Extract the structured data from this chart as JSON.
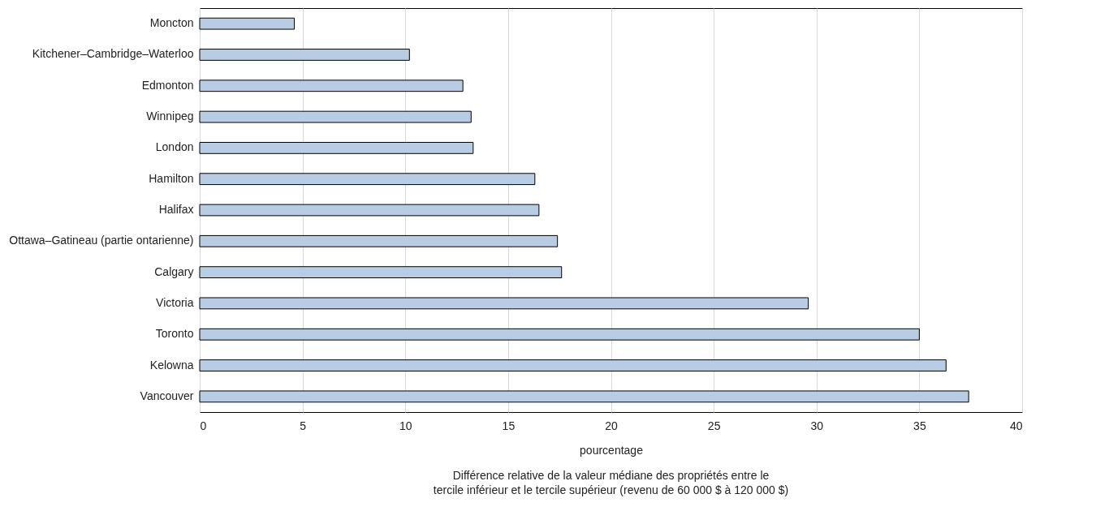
{
  "chart_data": {
    "type": "bar",
    "orientation": "horizontal",
    "xlabel": "pourcentage",
    "annotations": [
      "Différence relative de la valeur médiane des propriétés entre le tercile inférieur et le tercile supérieur (revenu de 60 000 $ à 120 000 $)"
    ],
    "categories": [
      "Moncton",
      "Kitchener–Cambridge–Waterloo",
      "Edmonton",
      "Winnipeg",
      "London",
      "Hamilton",
      "Halifax",
      "Ottawa–Gatineau (partie ontarienne)",
      "Calgary",
      "Victoria",
      "Toronto",
      "Kelowna",
      "Vancouver"
    ],
    "values": [
      4.6,
      10.2,
      12.8,
      13.2,
      13.3,
      16.3,
      16.5,
      17.4,
      17.6,
      29.6,
      35.0,
      36.3,
      37.4
    ],
    "color": "#b8cce4",
    "xlim": [
      0,
      40
    ],
    "xticks": [
      0,
      5,
      10,
      15,
      20,
      25,
      30,
      35,
      40
    ],
    "grid": "x"
  }
}
